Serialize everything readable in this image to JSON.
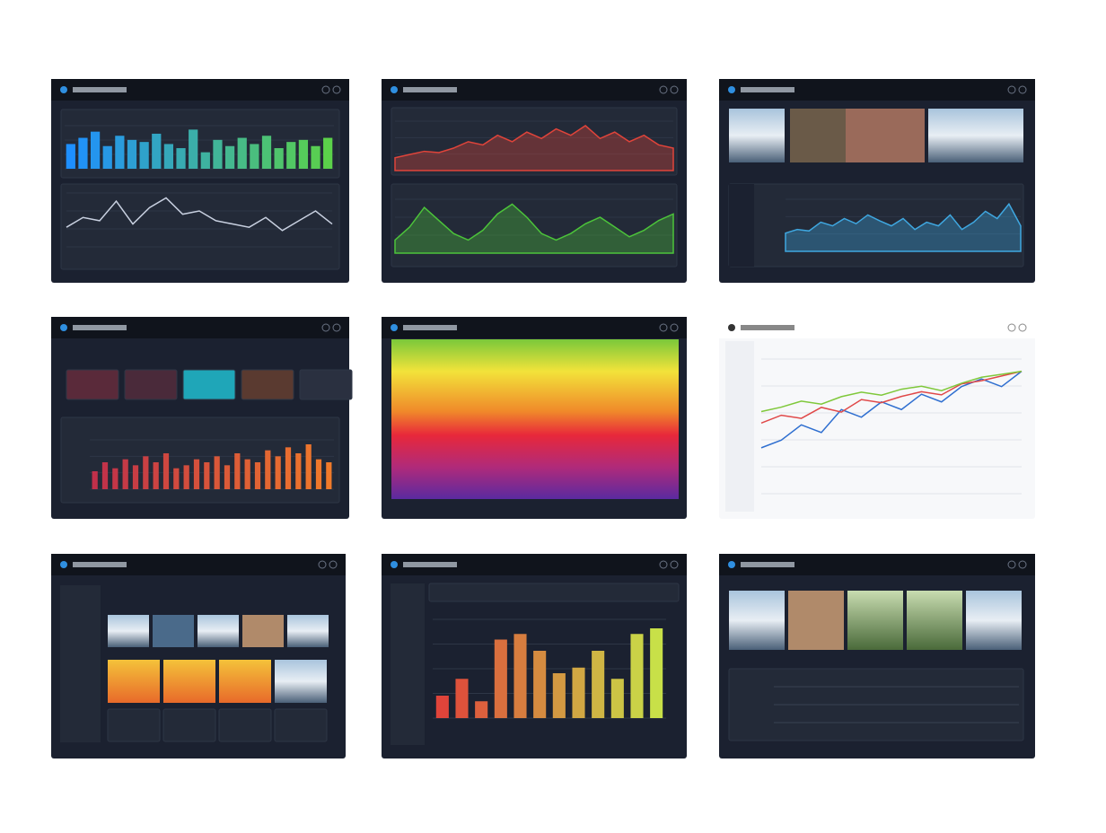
{
  "panels": [
    {
      "bars": {
        "values": [
          60,
          75,
          90,
          55,
          80,
          70,
          65,
          85,
          60,
          50,
          95,
          40,
          70,
          55,
          75,
          60,
          80,
          50,
          65,
          70,
          55,
          75
        ],
        "colors": [
          "#1e8fff",
          "#5bd14a"
        ]
      },
      "line": {
        "values": [
          30,
          45,
          40,
          70,
          35,
          60,
          75,
          50,
          55,
          40,
          35,
          30,
          45,
          25,
          40,
          55,
          35
        ],
        "color": "#c8d0e0"
      }
    },
    {
      "area": {
        "values": [
          20,
          25,
          30,
          28,
          35,
          45,
          40,
          55,
          45,
          60,
          50,
          65,
          55,
          70,
          50,
          60,
          45,
          55,
          40,
          35
        ],
        "color": "#e0443a"
      },
      "area2": {
        "values": [
          20,
          40,
          70,
          50,
          30,
          20,
          35,
          60,
          75,
          55,
          30,
          20,
          30,
          45,
          55,
          40,
          25,
          35,
          50,
          60
        ],
        "color": "#4cc43a"
      }
    },
    {
      "area": {
        "values": [
          25,
          30,
          28,
          40,
          35,
          45,
          38,
          50,
          42,
          35,
          45,
          30,
          40,
          35,
          50,
          30,
          40,
          55,
          45,
          65,
          35
        ],
        "color": "#3fa7e0"
      }
    },
    {
      "bars": {
        "values": [
          30,
          45,
          35,
          50,
          40,
          55,
          45,
          60,
          35,
          40,
          50,
          45,
          55,
          40,
          60,
          50,
          45,
          65,
          55,
          70,
          60,
          75,
          50,
          45
        ],
        "colors": [
          "#c0304a",
          "#f07a2a"
        ]
      }
    },
    {},
    {
      "lines": [
        {
          "values": [
            30,
            35,
            45,
            40,
            55,
            50,
            60,
            55,
            65,
            60,
            70,
            75,
            70,
            80
          ],
          "color": "#2f6fd0"
        },
        {
          "values": [
            45,
            50,
            48,
            55,
            52,
            60,
            58,
            62,
            65,
            63,
            70,
            72,
            75,
            78
          ],
          "color": "#e04848"
        },
        {
          "values": [
            55,
            58,
            62,
            60,
            65,
            68,
            66,
            70,
            72,
            69,
            74,
            78,
            80,
            82
          ],
          "color": "#7fc83a"
        }
      ]
    },
    {},
    {
      "bars": {
        "values": [
          20,
          35,
          15,
          70,
          75,
          60,
          40,
          45,
          60,
          35,
          75,
          80
        ],
        "colors": [
          "#e0443a",
          "#c8e048"
        ]
      }
    },
    {}
  ]
}
